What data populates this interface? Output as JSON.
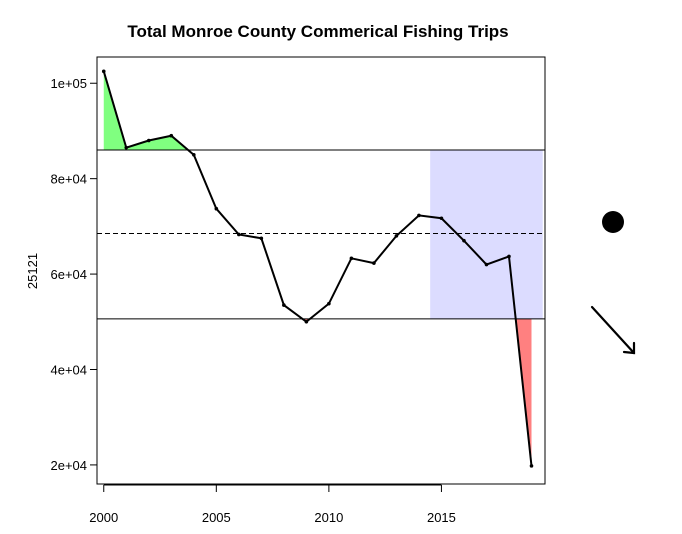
{
  "chart_data": {
    "type": "line",
    "title": "Total Monroe County Commerical Fishing Trips",
    "xlabel": "",
    "ylabel": "25121",
    "x": [
      2000,
      2001,
      2002,
      2003,
      2004,
      2005,
      2006,
      2007,
      2008,
      2009,
      2010,
      2011,
      2012,
      2013,
      2014,
      2015,
      2016,
      2017,
      2018,
      2019
    ],
    "series": [
      {
        "values": [
          102500,
          86500,
          88000,
          89000,
          85000,
          73700,
          68300,
          67500,
          53500,
          50000,
          53800,
          63300,
          62300,
          68000,
          72300,
          71700,
          67000,
          62000,
          63700,
          19800
        ],
        "color": "#000000"
      }
    ],
    "xlim": [
      1999.7,
      2019.6
    ],
    "ylim": [
      16000,
      105500
    ],
    "xticks": [
      2000,
      2005,
      2010,
      2015
    ],
    "xtick_labels": [
      "2000",
      "2005",
      "2010",
      "2015"
    ],
    "yticks": [
      20000,
      40000,
      60000,
      80000,
      100000
    ],
    "ytick_labels": [
      "2e+04",
      "4e+04",
      "6e+04",
      "8e+04",
      "1e+05"
    ],
    "mean": 68500,
    "upper_threshold": 86000,
    "lower_threshold": 50600,
    "highlight_band": {
      "x_start": 2014.5,
      "x_end": 2019.5,
      "y_start": 50600,
      "y_end": 86000,
      "color": "#dcdcff"
    },
    "fill_above_color": "#80ff80",
    "fill_below_color": "#ff8080",
    "grid": false,
    "legend": "none",
    "trend_indicators": {
      "recent_mean": "circle",
      "recent_trend": "arrow-down-right"
    }
  }
}
